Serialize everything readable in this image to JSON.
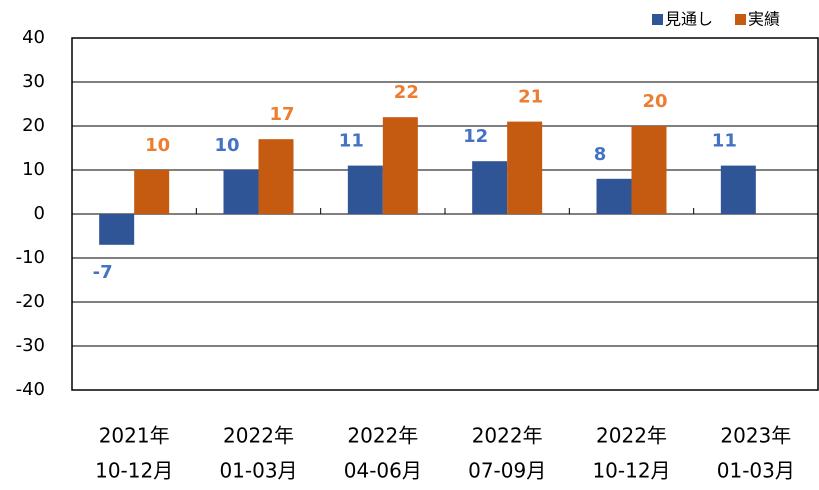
{
  "chart_data": {
    "type": "bar",
    "categories": [
      [
        "2021年",
        "10-12月"
      ],
      [
        "2022年",
        "01-03月"
      ],
      [
        "2022年",
        "04-06月"
      ],
      [
        "2022年",
        "07-09月"
      ],
      [
        "2022年",
        "10-12月"
      ],
      [
        "2023年",
        "01-03月"
      ]
    ],
    "series": [
      {
        "name": "見通し",
        "color": "#2f5597",
        "label_color": "#4472c4",
        "values": [
          -7,
          10,
          11,
          12,
          8,
          11
        ]
      },
      {
        "name": "実績",
        "color": "#c55a11",
        "label_color": "#ed7d31",
        "values": [
          10,
          17,
          22,
          21,
          20,
          null
        ]
      }
    ],
    "ylim": [
      -40,
      40
    ],
    "yticks": [
      -40,
      -30,
      -20,
      -10,
      0,
      10,
      20,
      30,
      40
    ],
    "grid": true,
    "legend": "top-right"
  }
}
